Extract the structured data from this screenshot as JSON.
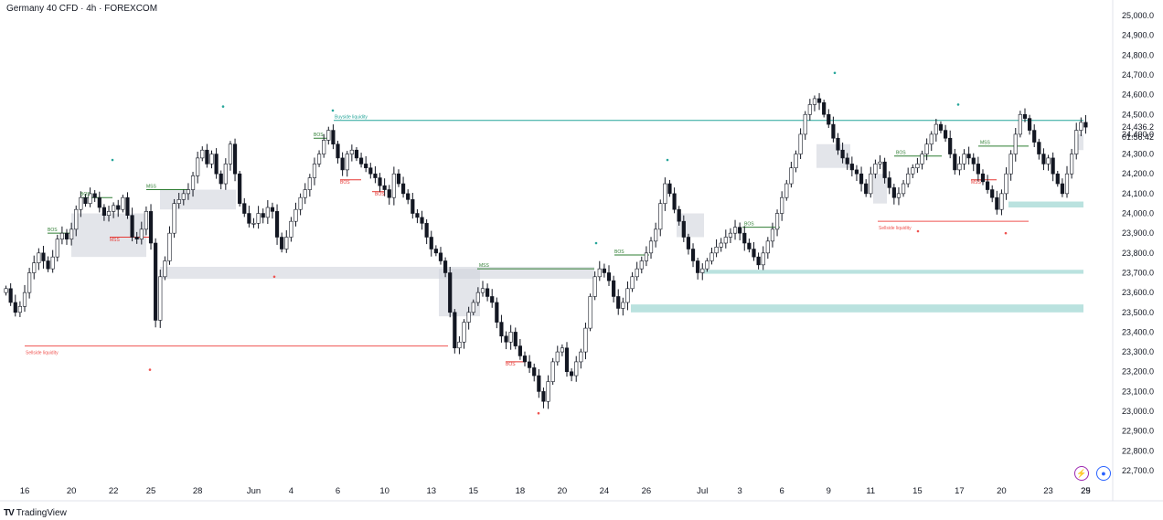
{
  "header": {
    "title": "Germany 40 CFD · 4h · FOREXCOM"
  },
  "footer": {
    "brand": "TradingView",
    "brand_icon": "tradingview-logo-icon"
  },
  "icons": {
    "lightning": "lightning-icon",
    "globe": "globe-icon"
  },
  "colors": {
    "up": "#131722",
    "down": "#131722",
    "bos": "#2e7d32",
    "mss_up": "#2e7d32",
    "mss_down": "#e53935",
    "liquidity_buy": "#26a69a",
    "liquidity_sell": "#ef5350",
    "fvg_gray": "#d1d4dc",
    "fvg_teal": "#b2dfdb"
  },
  "chart_data": {
    "type": "candlestick",
    "title": "Germany 40 CFD · 4h · FOREXCOM",
    "y_axis": {
      "ylim": [
        22650,
        25050
      ],
      "ticks": [
        "25,000.0",
        "24,900.0",
        "24,800.0",
        "24,700.0",
        "24,600.0",
        "24,500.0",
        "24,400.0",
        "24,300.0",
        "24,200.0",
        "24,100.0",
        "24,000.0",
        "23,900.0",
        "23,800.0",
        "23,700.0",
        "23,600.0",
        "23,500.0",
        "23,400.0",
        "23,300.0",
        "23,200.0",
        "23,100.0",
        "23,000.0",
        "22,900.0",
        "22,800.0",
        "22,700.0"
      ],
      "tick_values": [
        25000,
        24900,
        24800,
        24700,
        24600,
        24500,
        24400,
        24300,
        24200,
        24100,
        24000,
        23900,
        23800,
        23700,
        23600,
        23500,
        23400,
        23300,
        23200,
        23100,
        23000,
        22900,
        22800,
        22700
      ],
      "current_price": "24,436.2",
      "countdown": "01:56:42"
    },
    "x_axis": {
      "ticks": [
        "16",
        "20",
        "22",
        "25",
        "28",
        "Jun",
        "4",
        "6",
        "10",
        "13",
        "15",
        "18",
        "20",
        "24",
        "26",
        "Jul",
        "3",
        "6",
        "9",
        "11",
        "15",
        "17",
        "20",
        "23",
        "25",
        "29"
      ],
      "tick_index": [
        4,
        14,
        23,
        31,
        41,
        53,
        61,
        71,
        81,
        91,
        100,
        110,
        119,
        128,
        137,
        149,
        157,
        166,
        176,
        185,
        195,
        204,
        213,
        223,
        232,
        241
      ]
    },
    "candles_close": [
      23620,
      23550,
      23500,
      23530,
      23600,
      23700,
      23750,
      23800,
      23760,
      23720,
      23780,
      23870,
      23900,
      23870,
      23920,
      24020,
      24080,
      24050,
      24100,
      24080,
      24030,
      23990,
      24010,
      24040,
      24020,
      24080,
      23990,
      23880,
      23870,
      23920,
      24010,
      23850,
      23460,
      23680,
      23760,
      23900,
      24050,
      24070,
      24100,
      24120,
      24190,
      24280,
      24320,
      24250,
      24300,
      24200,
      24150,
      24250,
      24350,
      24200,
      24050,
      24000,
      23950,
      23950,
      24000,
      23980,
      24030,
      24010,
      23880,
      23820,
      23880,
      23960,
      24020,
      24080,
      24120,
      24180,
      24250,
      24300,
      24370,
      24420,
      24350,
      24280,
      24220,
      24300,
      24320,
      24280,
      24250,
      24230,
      24200,
      24180,
      24140,
      24120,
      24080,
      24200,
      24150,
      24100,
      24070,
      24000,
      23980,
      23950,
      23880,
      23820,
      23800,
      23760,
      23700,
      23500,
      23320,
      23350,
      23450,
      23500,
      23550,
      23600,
      23620,
      23580,
      23550,
      23450,
      23380,
      23350,
      23400,
      23330,
      23280,
      23250,
      23220,
      23180,
      23100,
      23050,
      23150,
      23250,
      23300,
      23320,
      23200,
      23180,
      23250,
      23300,
      23420,
      23580,
      23680,
      23720,
      23700,
      23660,
      23580,
      23520,
      23550,
      23620,
      23680,
      23720,
      23760,
      23800,
      23860,
      23920,
      24050,
      24150,
      24100,
      24020,
      23960,
      23880,
      23820,
      23760,
      23700,
      23720,
      23760,
      23800,
      23830,
      23850,
      23880,
      23900,
      23930,
      23900,
      23850,
      23820,
      23780,
      23740,
      23800,
      23860,
      23920,
      24000,
      24080,
      24150,
      24230,
      24300,
      24400,
      24500,
      24550,
      24580,
      24560,
      24500,
      24450,
      24380,
      24320,
      24280,
      24250,
      24220,
      24200,
      24150,
      24100,
      24200,
      24250,
      24260,
      24180,
      24130,
      24080,
      24100,
      24150,
      24200,
      24230,
      24250,
      24300,
      24350,
      24400,
      24450,
      24420,
      24380,
      24300,
      24220,
      24250,
      24300,
      24280,
      24250,
      24200,
      24160,
      24120,
      24080,
      24020,
      24100,
      24200,
      24300,
      24400,
      24500,
      24480,
      24420,
      24360,
      24300,
      24250,
      24280,
      24200,
      24150,
      24100,
      24200,
      24300,
      24420,
      24460,
      24436
    ],
    "annotations": [
      {
        "type": "BOS",
        "label": "BOS"
      },
      {
        "type": "MSS",
        "label": "MSS"
      },
      {
        "type": "liquidity",
        "label": "Buyside liquidity"
      },
      {
        "type": "liquidity",
        "label": "Sellside liquidity"
      }
    ],
    "grid": false,
    "legend": "none"
  }
}
